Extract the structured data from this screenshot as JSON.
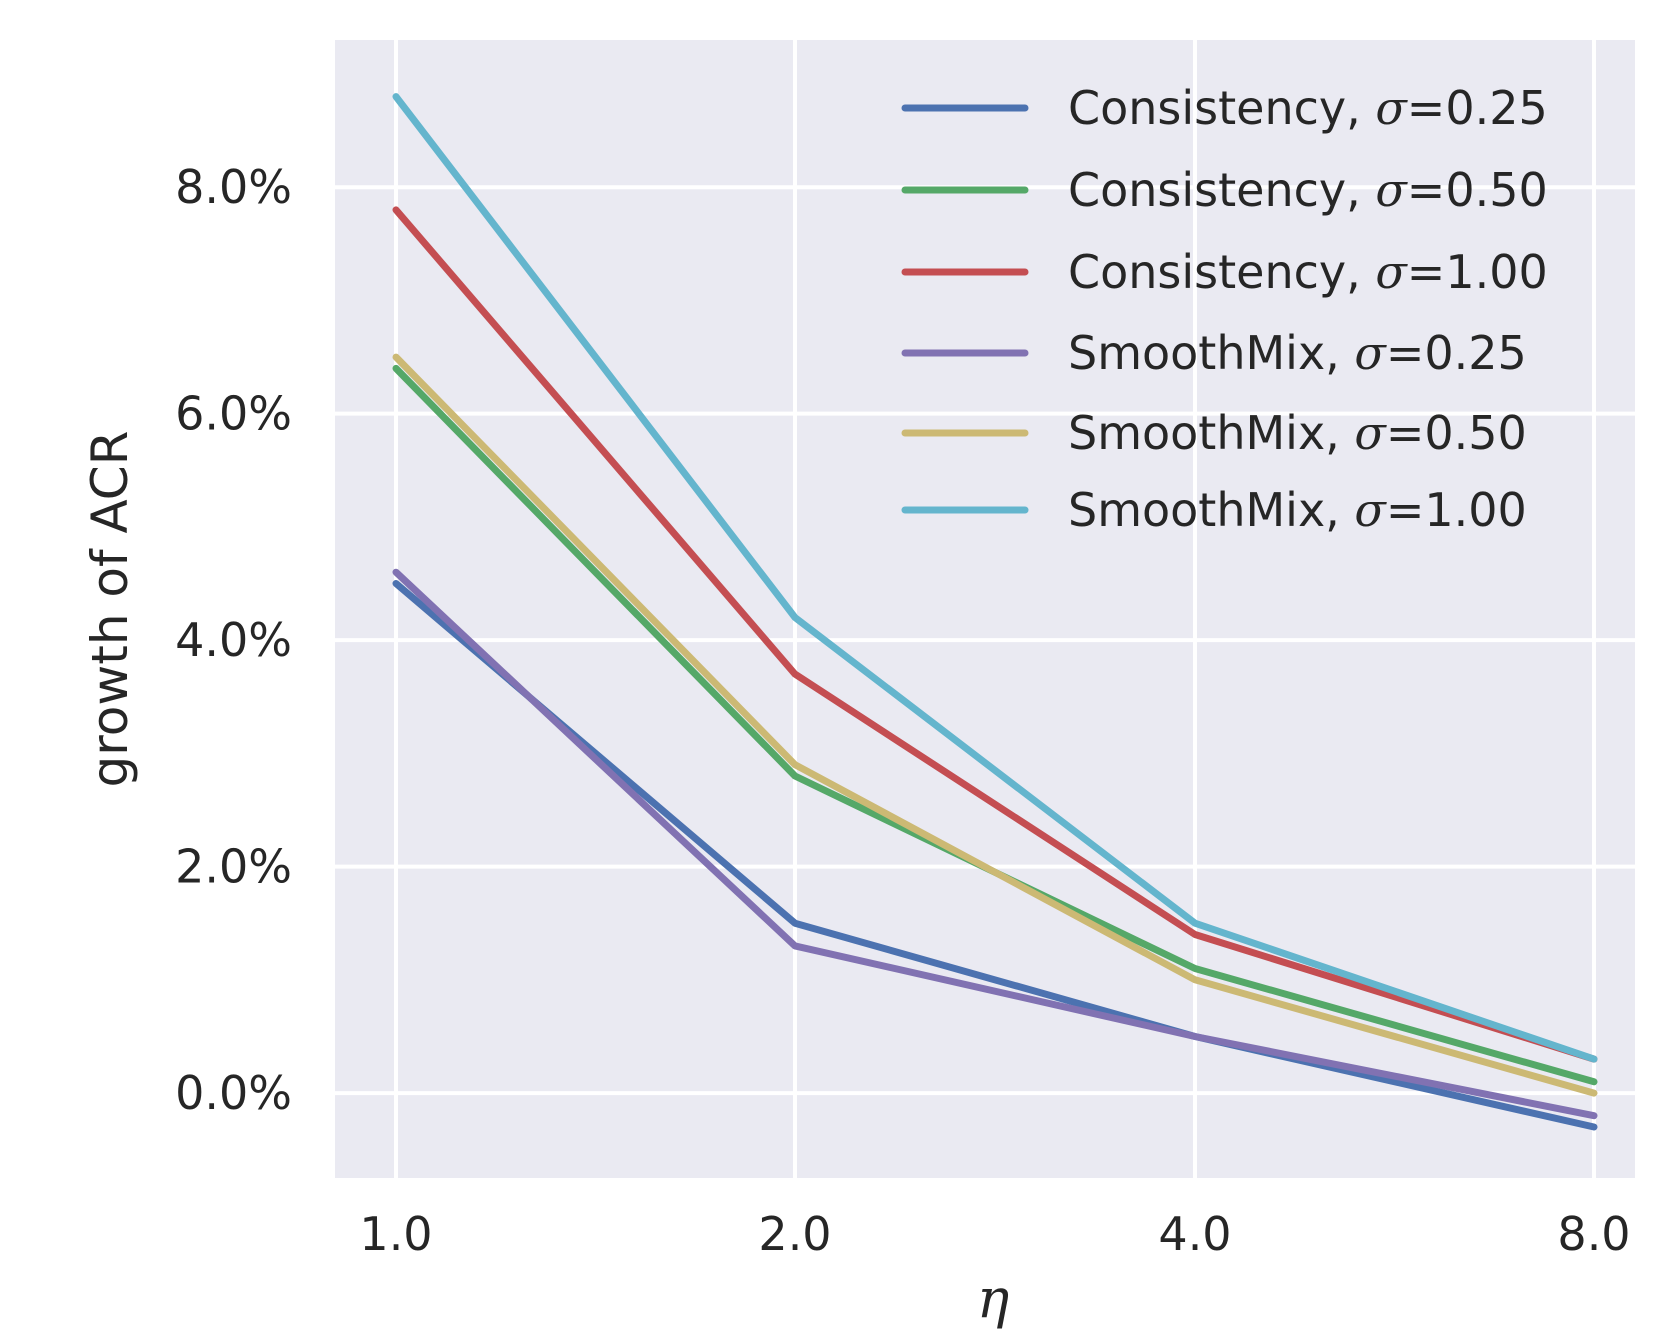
{
  "chart_data": {
    "type": "line",
    "title": "",
    "xlabel": "η",
    "ylabel": "growth of ACR",
    "x": [
      1.0,
      2.0,
      4.0,
      8.0
    ],
    "x_tick_labels": [
      "1.0",
      "2.0",
      "4.0",
      "8.0"
    ],
    "x_scale": "categorical-equal-spacing",
    "y_ticks": [
      0.0,
      2.0,
      4.0,
      6.0,
      8.0
    ],
    "y_tick_labels": [
      "0.0%",
      "2.0%",
      "4.0%",
      "6.0%",
      "8.0%"
    ],
    "ylim": [
      -0.75,
      9.3
    ],
    "y_unit": "%",
    "grid": true,
    "legend_position": "top-right",
    "series": [
      {
        "name": "Consistency, σ=0.25",
        "label_prefix": "Consistency, ",
        "sigma": "σ",
        "label_suffix": "=0.25",
        "color": "#4c72b0",
        "values": [
          4.5,
          1.5,
          0.5,
          -0.3
        ]
      },
      {
        "name": "Consistency, σ=0.50",
        "label_prefix": "Consistency, ",
        "sigma": "σ",
        "label_suffix": "=0.50",
        "color": "#55a868",
        "values": [
          6.4,
          2.8,
          1.1,
          0.1
        ]
      },
      {
        "name": "Consistency, σ=1.00",
        "label_prefix": "Consistency, ",
        "sigma": "σ",
        "label_suffix": "=1.00",
        "color": "#c44e52",
        "values": [
          7.8,
          3.7,
          1.4,
          0.3
        ]
      },
      {
        "name": "SmoothMix, σ=0.25",
        "label_prefix": "SmoothMix, ",
        "sigma": "σ",
        "label_suffix": "=0.25",
        "color": "#8172b2",
        "values": [
          4.6,
          1.3,
          0.5,
          -0.2
        ]
      },
      {
        "name": "SmoothMix, σ=0.50",
        "label_prefix": "SmoothMix, ",
        "sigma": "σ",
        "label_suffix": "=0.50",
        "color": "#ccb974",
        "values": [
          6.5,
          2.9,
          1.0,
          0.0
        ]
      },
      {
        "name": "SmoothMix, σ=1.00",
        "label_prefix": "SmoothMix, ",
        "sigma": "σ",
        "label_suffix": "=1.00",
        "color": "#64b5cd",
        "values": [
          8.8,
          4.2,
          1.5,
          0.3
        ]
      }
    ]
  },
  "colors": {
    "plot_background": "#eaeaf2",
    "grid": "#ffffff",
    "text": "#262626"
  }
}
